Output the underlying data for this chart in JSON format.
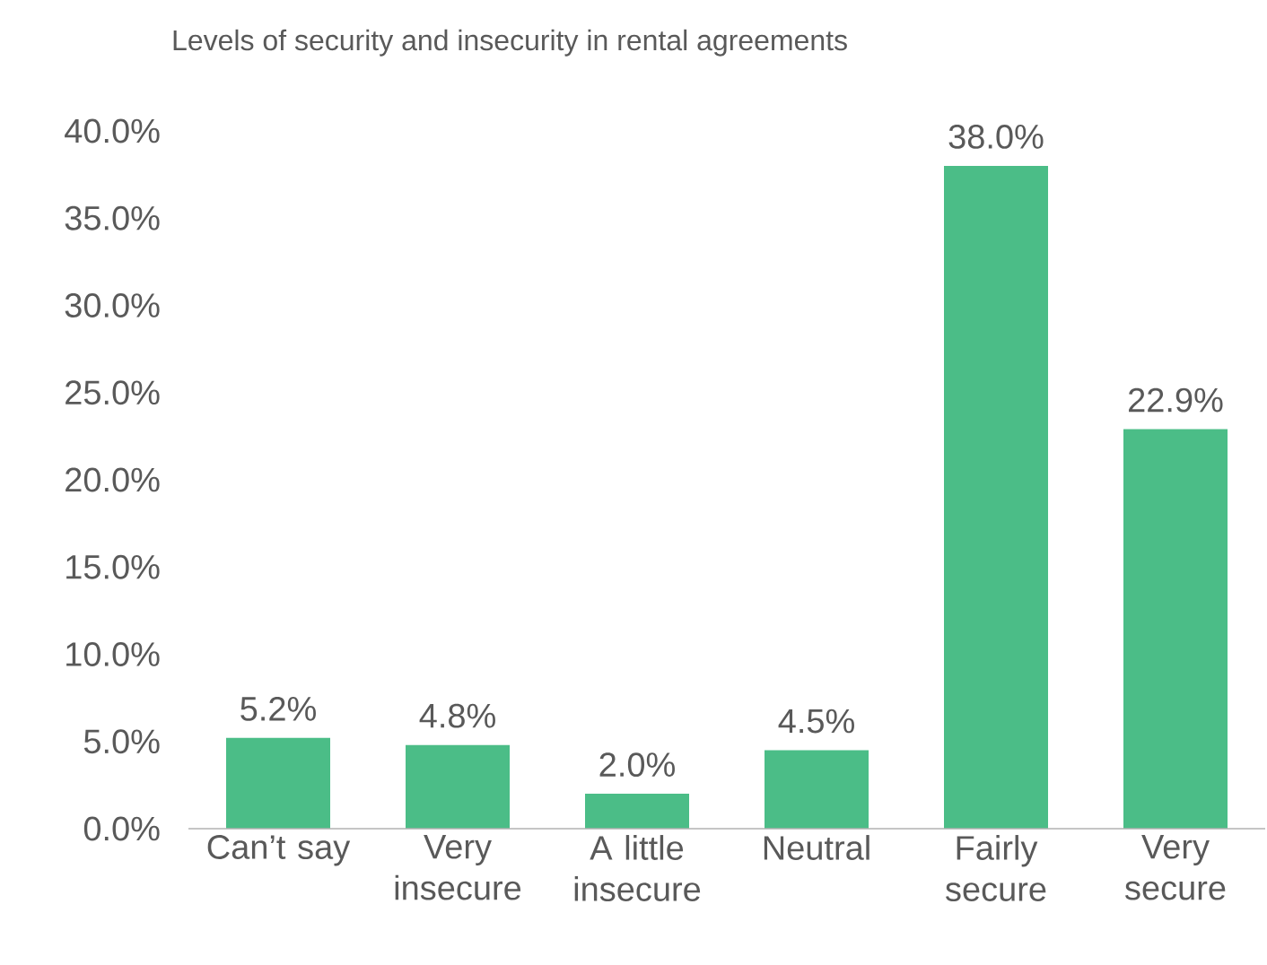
{
  "chart_data": {
    "type": "bar",
    "title": "Levels of security and insecurity in rental agreements",
    "categories": [
      "Can’t say",
      "Very insecure",
      "A little insecure",
      "Neutral",
      "Fairly secure",
      "Very secure"
    ],
    "values": [
      5.2,
      4.8,
      2.0,
      4.5,
      38.0,
      22.9
    ],
    "value_labels": [
      "5.2%",
      "4.8%",
      "2.0%",
      "4.5%",
      "38.0%",
      "22.9%"
    ],
    "color": "#4bbd87",
    "ylim": [
      0,
      40
    ],
    "yticks": [
      {
        "value": 0,
        "label": "0.0%"
      },
      {
        "value": 5,
        "label": "5.0%"
      },
      {
        "value": 10,
        "label": "10.0%"
      },
      {
        "value": 15,
        "label": "15.0%"
      },
      {
        "value": 20,
        "label": "20.0%"
      },
      {
        "value": 25,
        "label": "25.0%"
      },
      {
        "value": 30,
        "label": "30.0%"
      },
      {
        "value": 35,
        "label": "35.0%"
      },
      {
        "value": 40,
        "label": "40.0%"
      }
    ]
  }
}
